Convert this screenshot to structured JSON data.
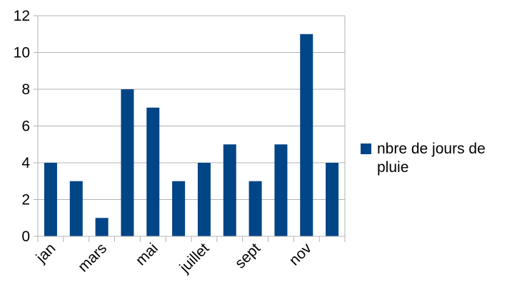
{
  "chart_data": {
    "type": "bar",
    "categories": [
      "jan",
      "",
      "mars",
      "",
      "mai",
      "",
      "juillet",
      "",
      "sept",
      "",
      "nov",
      ""
    ],
    "series": [
      {
        "name": "nbre de jours de pluie",
        "values": [
          4,
          3,
          1,
          8,
          7,
          3,
          4,
          5,
          3,
          5,
          11,
          4
        ]
      }
    ],
    "ylim": [
      0,
      12
    ],
    "yticks": [
      0,
      2,
      4,
      6,
      8,
      10,
      12
    ],
    "grid": true,
    "legend_position": "right",
    "colors": {
      "bar": "#004586",
      "grid": "#b3b3b3"
    }
  }
}
